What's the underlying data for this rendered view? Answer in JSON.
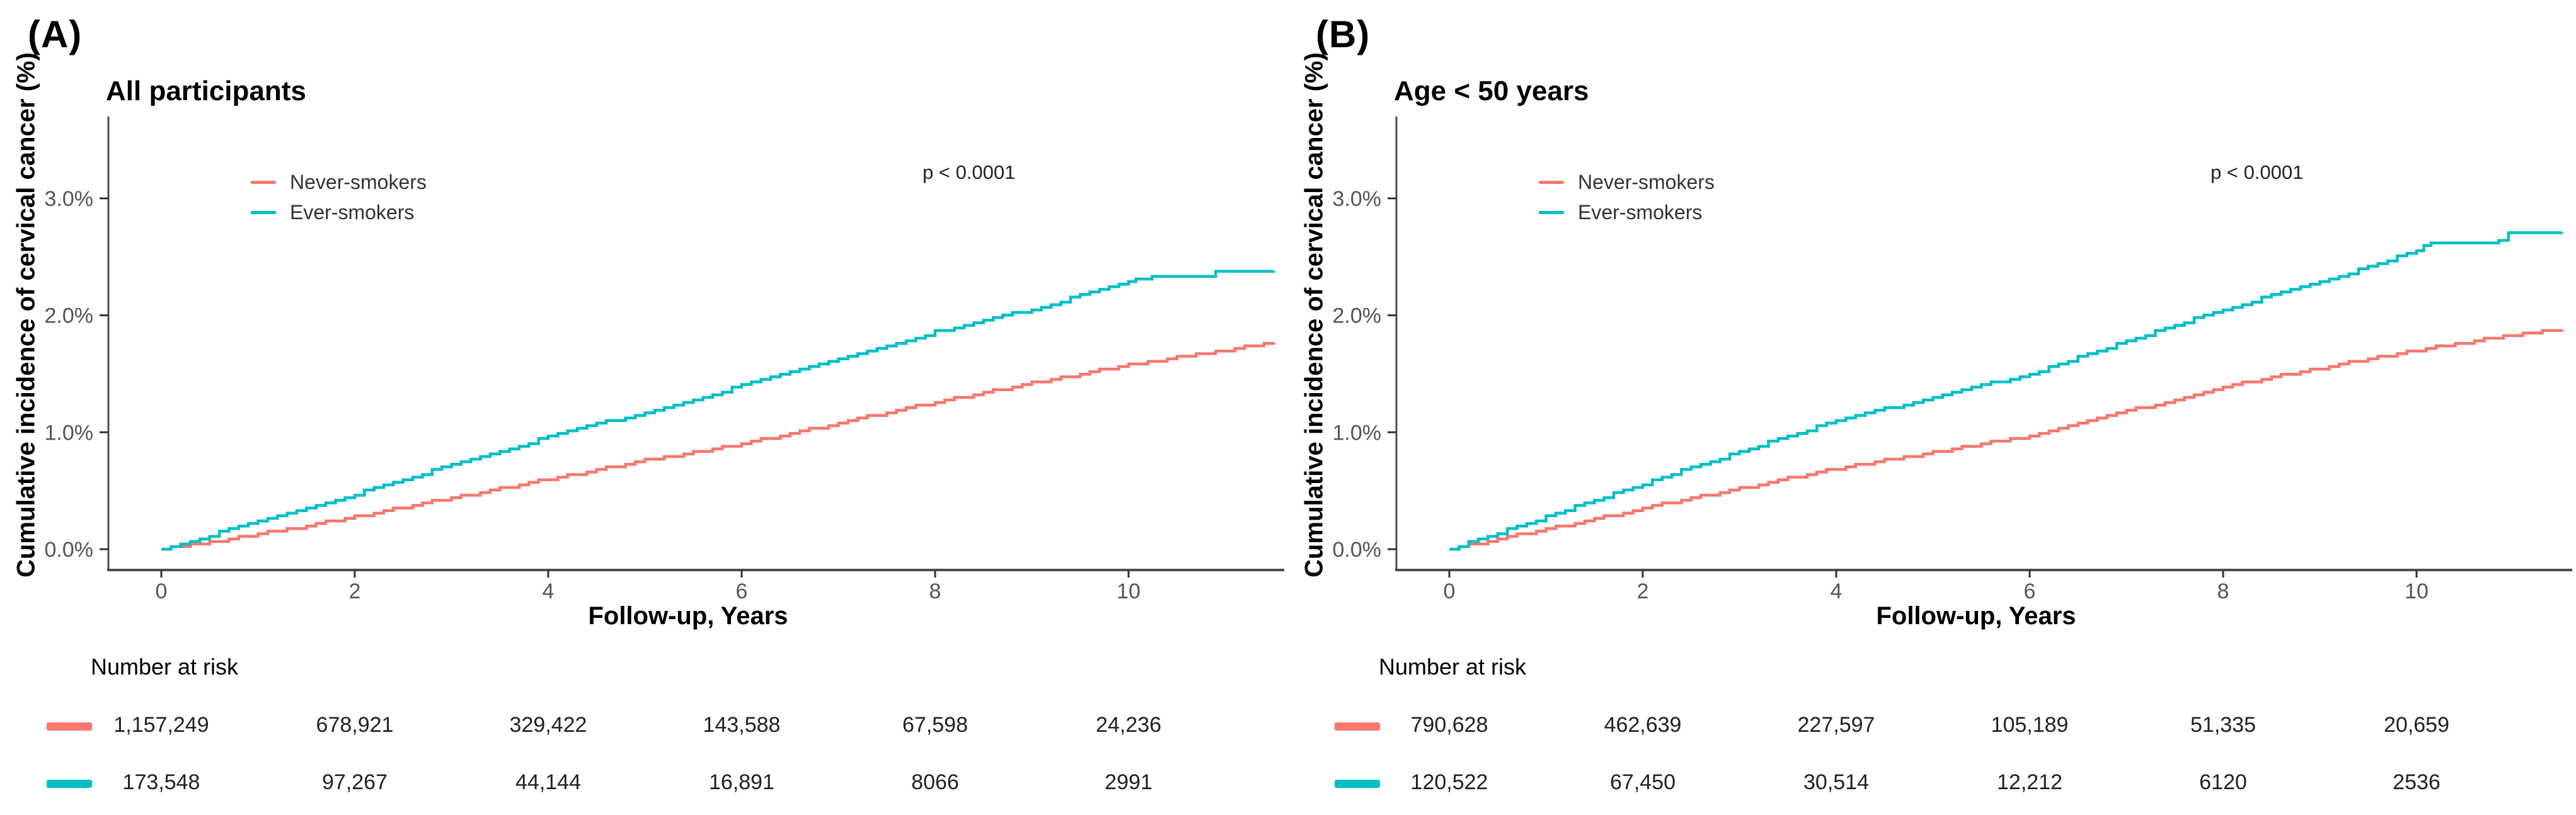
{
  "panels": [
    {
      "label": "(A)"
    },
    {
      "label": "(B)"
    }
  ],
  "labels": {
    "number_at_risk": "Number at risk"
  },
  "style": {
    "background": "#ffffff",
    "axis_line_color": "#4d4d4d",
    "tick_mark_color": "#333333",
    "tick_label_color": "#555555",
    "text_color": "#000000",
    "never_smokers_color": "#F8766D",
    "ever_smokers_color": "#00BFC4"
  },
  "chart_data": [
    {
      "type": "line",
      "title": "All participants",
      "annotation": "p < 0.0001",
      "xlabel": "Follow-up, Years",
      "ylabel": "Cumulative incidence of cervical cancer (%)",
      "xlim": [
        0,
        11.5
      ],
      "ylim": [
        0,
        3.7
      ],
      "x_ticks": [
        0,
        2,
        4,
        6,
        8,
        10
      ],
      "y_ticks": [
        {
          "value": 0,
          "label": "0.0%"
        },
        {
          "value": 1,
          "label": "1.0%"
        },
        {
          "value": 2,
          "label": "2.0%"
        },
        {
          "value": 3,
          "label": "3.0%"
        }
      ],
      "grid": false,
      "legend_position": "inside-top-left",
      "series": [
        {
          "name": "Never-smokers",
          "color": "#F8766D",
          "points": [
            [
              0,
              0
            ],
            [
              0.5,
              0.06
            ],
            [
              1,
              0.13
            ],
            [
              1.5,
              0.2
            ],
            [
              2,
              0.28
            ],
            [
              2.5,
              0.36
            ],
            [
              3,
              0.44
            ],
            [
              3.5,
              0.52
            ],
            [
              4,
              0.6
            ],
            [
              4.5,
              0.68
            ],
            [
              5,
              0.76
            ],
            [
              5.5,
              0.83
            ],
            [
              6,
              0.9
            ],
            [
              6.5,
              0.99
            ],
            [
              7,
              1.08
            ],
            [
              7.5,
              1.17
            ],
            [
              8,
              1.26
            ],
            [
              8.5,
              1.34
            ],
            [
              9,
              1.42
            ],
            [
              9.5,
              1.5
            ],
            [
              10,
              1.58
            ],
            [
              10.5,
              1.64
            ],
            [
              11,
              1.7
            ],
            [
              11.5,
              1.77
            ]
          ]
        },
        {
          "name": "Ever-smokers",
          "color": "#00BFC4",
          "points": [
            [
              0,
              0
            ],
            [
              0.5,
              0.12
            ],
            [
              1,
              0.24
            ],
            [
              1.5,
              0.35
            ],
            [
              2,
              0.47
            ],
            [
              2.5,
              0.6
            ],
            [
              3,
              0.72
            ],
            [
              3.5,
              0.84
            ],
            [
              4,
              0.96
            ],
            [
              4.5,
              1.07
            ],
            [
              5,
              1.17
            ],
            [
              5.5,
              1.28
            ],
            [
              6,
              1.4
            ],
            [
              6.5,
              1.51
            ],
            [
              7,
              1.62
            ],
            [
              7.5,
              1.74
            ],
            [
              8,
              1.86
            ],
            [
              8.5,
              1.96
            ],
            [
              9,
              2.05
            ],
            [
              9.5,
              2.17
            ],
            [
              10,
              2.28
            ],
            [
              10.15,
              2.32
            ],
            [
              10.8,
              2.33
            ],
            [
              10.9,
              2.37
            ],
            [
              11.5,
              2.38
            ]
          ]
        }
      ],
      "number_at_risk": {
        "times": [
          0,
          2,
          4,
          6,
          8,
          10
        ],
        "rows": [
          {
            "name": "Never-smokers",
            "color": "#F8766D",
            "values": [
              "1,157,249",
              "678,921",
              "329,422",
              "143,588",
              "67,598",
              "24,236"
            ]
          },
          {
            "name": "Ever-smokers",
            "color": "#00BFC4",
            "values": [
              "173,548",
              "97,267",
              "44,144",
              "16,891",
              "8066",
              "2991"
            ]
          }
        ]
      }
    },
    {
      "type": "line",
      "title": "Age < 50 years",
      "annotation": "p < 0.0001",
      "xlabel": "Follow-up, Years",
      "ylabel": "Cumulative incidence of cervical cancer (%)",
      "xlim": [
        0,
        11.5
      ],
      "ylim": [
        0,
        3.7
      ],
      "x_ticks": [
        0,
        2,
        4,
        6,
        8,
        10
      ],
      "y_ticks": [
        {
          "value": 0,
          "label": "0.0%"
        },
        {
          "value": 1,
          "label": "1.0%"
        },
        {
          "value": 2,
          "label": "2.0%"
        },
        {
          "value": 3,
          "label": "3.0%"
        }
      ],
      "grid": false,
      "legend_position": "inside-top-left",
      "series": [
        {
          "name": "Never-smokers",
          "color": "#F8766D",
          "points": [
            [
              0,
              0
            ],
            [
              0.5,
              0.09
            ],
            [
              1,
              0.17
            ],
            [
              1.5,
              0.26
            ],
            [
              2,
              0.35
            ],
            [
              2.5,
              0.44
            ],
            [
              3,
              0.52
            ],
            [
              3.5,
              0.61
            ],
            [
              4,
              0.69
            ],
            [
              4.5,
              0.76
            ],
            [
              5,
              0.83
            ],
            [
              5.5,
              0.9
            ],
            [
              6,
              0.97
            ],
            [
              6.5,
              1.07
            ],
            [
              7,
              1.18
            ],
            [
              7.5,
              1.28
            ],
            [
              8,
              1.39
            ],
            [
              8.5,
              1.47
            ],
            [
              9,
              1.55
            ],
            [
              9.5,
              1.63
            ],
            [
              10,
              1.7
            ],
            [
              10.5,
              1.77
            ],
            [
              11,
              1.83
            ],
            [
              11.5,
              1.88
            ]
          ]
        },
        {
          "name": "Ever-smokers",
          "color": "#00BFC4",
          "points": [
            [
              0,
              0
            ],
            [
              0.5,
              0.14
            ],
            [
              1,
              0.28
            ],
            [
              1.5,
              0.42
            ],
            [
              2,
              0.56
            ],
            [
              2.5,
              0.7
            ],
            [
              3,
              0.83
            ],
            [
              3.5,
              0.97
            ],
            [
              4,
              1.1
            ],
            [
              4.5,
              1.2
            ],
            [
              5,
              1.3
            ],
            [
              5.5,
              1.4
            ],
            [
              6,
              1.5
            ],
            [
              6.5,
              1.64
            ],
            [
              7,
              1.78
            ],
            [
              7.5,
              1.92
            ],
            [
              8,
              2.05
            ],
            [
              8.5,
              2.17
            ],
            [
              9,
              2.28
            ],
            [
              9.5,
              2.42
            ],
            [
              10,
              2.55
            ],
            [
              10.15,
              2.62
            ],
            [
              10.85,
              2.63
            ],
            [
              10.95,
              2.7
            ],
            [
              11.5,
              2.71
            ]
          ]
        }
      ],
      "number_at_risk": {
        "times": [
          0,
          2,
          4,
          6,
          8,
          10
        ],
        "rows": [
          {
            "name": "Never-smokers",
            "color": "#F8766D",
            "values": [
              "790,628",
              "462,639",
              "227,597",
              "105,189",
              "51,335",
              "20,659"
            ]
          },
          {
            "name": "Ever-smokers",
            "color": "#00BFC4",
            "values": [
              "120,522",
              "67,450",
              "30,514",
              "12,212",
              "6120",
              "2536"
            ]
          }
        ]
      }
    }
  ]
}
